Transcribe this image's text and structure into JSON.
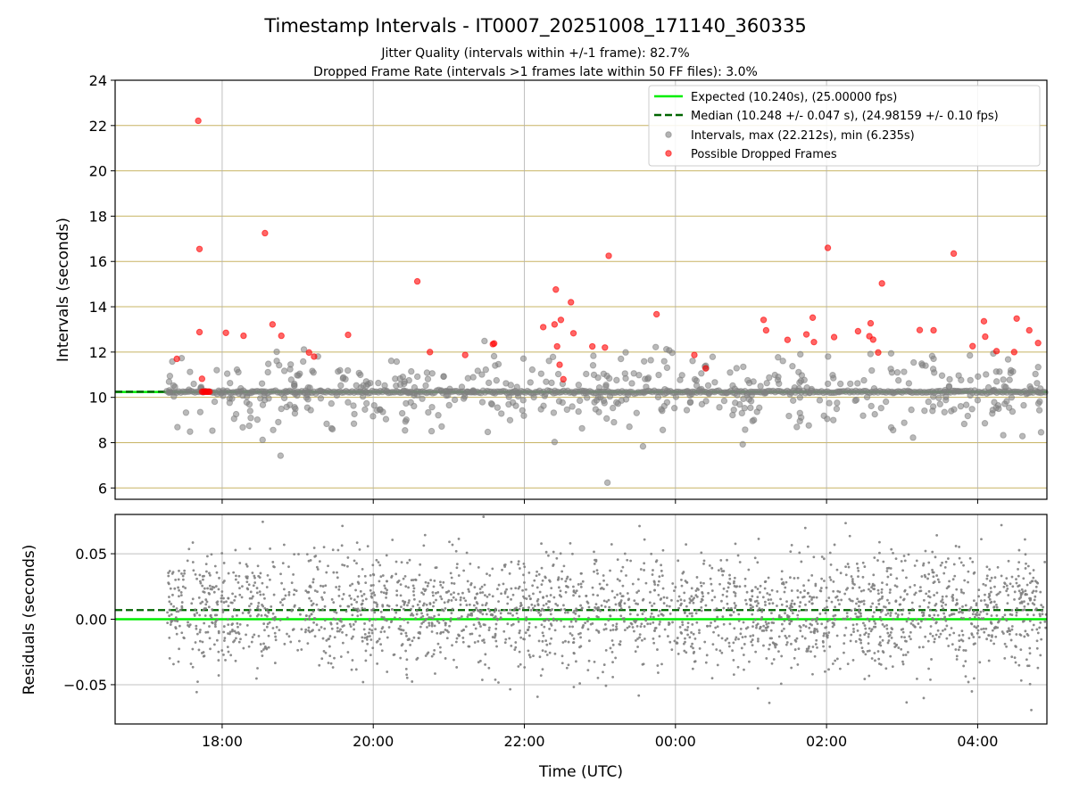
{
  "figure": {
    "title": "Timestamp Intervals - IT0007_20251008_171140_360335",
    "subtitle_1": "Jitter Quality (intervals within +/-1 frame): 82.7%",
    "subtitle_2": "Dropped Frame Rate (intervals >1 frames late within 50 FF files): 3.0%"
  },
  "colors": {
    "expected": "#00ee00",
    "median": "#006400",
    "intervals": "#808080",
    "dropped": "#ff0000",
    "gridline_y_top": "#c8b464",
    "gridline": "#b0b0b0"
  },
  "chart_data": [
    {
      "type": "scatter",
      "ylabel": "Intervals (seconds)",
      "xlim": [
        "16:35",
        "04:55"
      ],
      "ylim": [
        5.5,
        24
      ],
      "yticks": [
        6,
        8,
        10,
        12,
        14,
        16,
        18,
        20,
        22,
        24
      ],
      "xticks": [
        "18:00",
        "20:00",
        "22:00",
        "00:00",
        "02:00",
        "04:00"
      ],
      "grid": true,
      "legend_position": "upper right",
      "legend": [
        "Expected (10.240s), (25.00000 fps)",
        "Median (10.248 +/- 0.047 s), (24.98159 +/- 0.10 fps)",
        "Intervals, max (22.212s), min (6.235s)",
        "Possible Dropped Frames"
      ],
      "expected_interval": 10.24,
      "median_interval": 10.248,
      "series": [
        {
          "name": "Possible Dropped Frames",
          "points": [
            [
              "17:24",
              11.7
            ],
            [
              "17:41",
              22.21
            ],
            [
              "17:42",
              16.55
            ],
            [
              "17:42",
              12.88
            ],
            [
              "17:44",
              10.82
            ],
            [
              "17:44",
              10.25
            ],
            [
              "17:45",
              10.25
            ],
            [
              "17:46",
              10.25
            ],
            [
              "17:47",
              10.25
            ],
            [
              "17:48",
              10.25
            ],
            [
              "17:49",
              10.25
            ],
            [
              "17:50",
              10.25
            ],
            [
              "18:03",
              12.85
            ],
            [
              "18:17",
              12.72
            ],
            [
              "18:34",
              17.25
            ],
            [
              "18:40",
              13.22
            ],
            [
              "18:47",
              12.72
            ],
            [
              "19:09",
              11.98
            ],
            [
              "19:13",
              11.8
            ],
            [
              "19:40",
              12.76
            ],
            [
              "20:35",
              15.12
            ],
            [
              "20:45",
              12.0
            ],
            [
              "21:13",
              11.87
            ],
            [
              "21:35",
              12.35
            ],
            [
              "21:36",
              12.38
            ],
            [
              "22:15",
              13.1
            ],
            [
              "22:24",
              13.22
            ],
            [
              "22:25",
              14.76
            ],
            [
              "22:26",
              12.25
            ],
            [
              "22:28",
              11.44
            ],
            [
              "22:29",
              13.42
            ],
            [
              "22:31",
              10.8
            ],
            [
              "22:37",
              14.2
            ],
            [
              "22:39",
              12.83
            ],
            [
              "22:54",
              12.25
            ],
            [
              "23:04",
              12.2
            ],
            [
              "23:07",
              16.25
            ],
            [
              "23:45",
              13.67
            ],
            [
              "00:15",
              11.87
            ],
            [
              "00:24",
              11.28
            ],
            [
              "01:10",
              13.42
            ],
            [
              "01:12",
              12.96
            ],
            [
              "01:29",
              12.54
            ],
            [
              "01:44",
              12.78
            ],
            [
              "01:49",
              13.52
            ],
            [
              "01:50",
              12.44
            ],
            [
              "02:01",
              16.6
            ],
            [
              "02:06",
              12.66
            ],
            [
              "02:25",
              12.92
            ],
            [
              "02:34",
              12.7
            ],
            [
              "02:35",
              13.27
            ],
            [
              "02:37",
              12.55
            ],
            [
              "02:41",
              11.98
            ],
            [
              "02:44",
              15.03
            ],
            [
              "03:14",
              12.97
            ],
            [
              "03:25",
              12.96
            ],
            [
              "03:41",
              16.35
            ],
            [
              "03:56",
              12.26
            ],
            [
              "04:05",
              13.36
            ],
            [
              "04:06",
              12.68
            ],
            [
              "04:15",
              12.04
            ],
            [
              "04:29",
              12.0
            ],
            [
              "04:31",
              13.48
            ],
            [
              "04:41",
              12.96
            ],
            [
              "04:48",
              12.4
            ]
          ]
        }
      ]
    },
    {
      "type": "scatter",
      "xlabel": "Time (UTC)",
      "ylabel": "Residuals (seconds)",
      "xlim": [
        "16:35",
        "04:55"
      ],
      "ylim": [
        -0.08,
        0.08
      ],
      "yticks": [
        -0.05,
        0.0,
        0.05
      ],
      "ytick_labels": [
        "−0.05",
        "0.00",
        "0.05"
      ],
      "xticks": [
        "18:00",
        "20:00",
        "22:00",
        "00:00",
        "02:00",
        "04:00"
      ],
      "grid": true,
      "expected_residual": 0.0,
      "median_residual": 0.007
    }
  ]
}
